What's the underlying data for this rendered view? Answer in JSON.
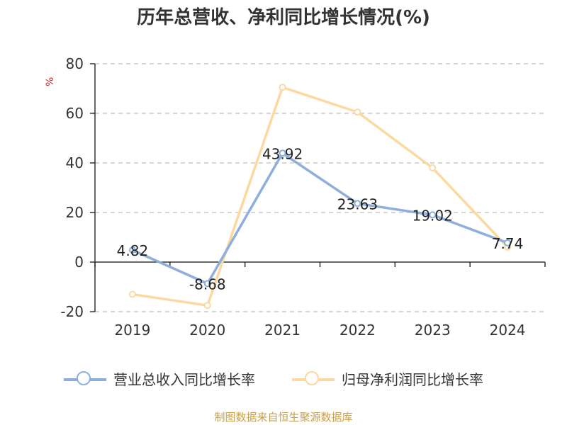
{
  "chart_data": {
    "type": "line",
    "title": "历年总营收、净利同比增长情况(%)",
    "ylabel": "%",
    "categories": [
      "2019",
      "2020",
      "2021",
      "2022",
      "2023",
      "2024"
    ],
    "ylim": [
      -20,
      80
    ],
    "yticks": [
      -20,
      0,
      20,
      40,
      60,
      80
    ],
    "grid": true,
    "legend_position": "bottom",
    "series": [
      {
        "name": "营业总收入同比增长率",
        "color": "#8eaedb",
        "values": [
          4.82,
          -8.68,
          43.92,
          23.63,
          19.02,
          7.74
        ],
        "labels": [
          "4.82",
          "-8.68",
          "43.92",
          "23.63",
          "19.02",
          "7.74"
        ]
      },
      {
        "name": "归母净利润同比增长率",
        "color": "#fbd9a0",
        "values": [
          -13.0,
          -17.5,
          70.5,
          60.5,
          38.0,
          6.0
        ]
      }
    ]
  },
  "footer": {
    "source": "制图数据来自恒生聚源数据库"
  }
}
